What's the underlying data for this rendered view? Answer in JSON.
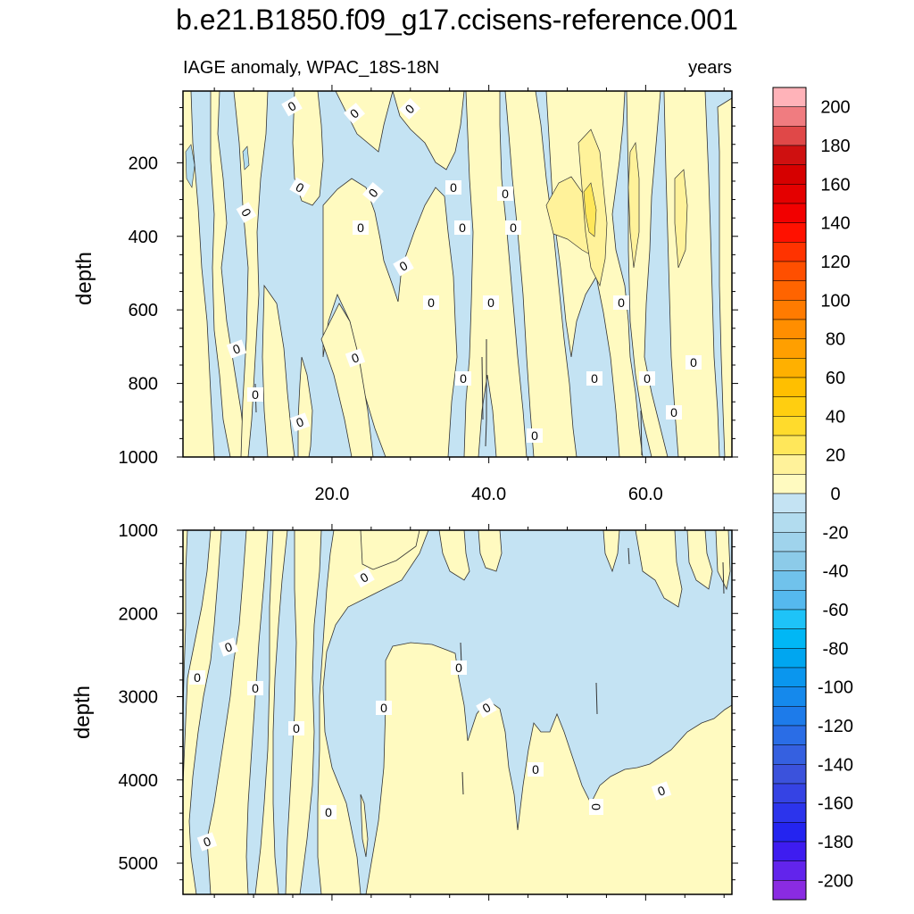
{
  "title": "b.e21.B1850.f09_g17.ccisens-reference.001",
  "chart_data": [
    {
      "type": "contour",
      "panel": "upper",
      "left_string": "IAGE anomaly, WPAC_18S-18N",
      "right_string": "years",
      "ylabel": "depth",
      "ylim": [
        1000,
        5
      ],
      "y_reversed": true,
      "xlim": [
        1,
        71
      ],
      "x_ticks": [
        20.0,
        40.0,
        60.0
      ],
      "x_tick_labels": [
        "20.0",
        "40.0",
        "60.0"
      ],
      "y_ticks": [
        200,
        400,
        600,
        800,
        1000
      ],
      "y_tick_labels": [
        "200",
        "400",
        "600",
        "800",
        "1000"
      ],
      "contour_line_labels": [
        "0",
        "0",
        "0",
        "0",
        "0",
        "0",
        "0",
        "0",
        "0",
        "0",
        "0",
        "0",
        "0",
        "0",
        "0",
        "0",
        "0",
        "0",
        "0",
        "0",
        "0",
        "0",
        "0",
        "0"
      ]
    },
    {
      "type": "contour",
      "panel": "lower",
      "ylabel": "depth",
      "ylim": [
        5375,
        1000
      ],
      "y_reversed": true,
      "xlim": [
        1,
        71
      ],
      "y_ticks": [
        1000,
        2000,
        3000,
        4000,
        5000
      ],
      "y_tick_labels": [
        "1000",
        "2000",
        "3000",
        "4000",
        "5000"
      ],
      "contour_line_labels": [
        "0",
        "0",
        "0",
        "0",
        "0",
        "0",
        "0",
        "0",
        "0",
        "0",
        "0",
        "0",
        "0"
      ]
    }
  ],
  "colorbar": {
    "levels": [
      "200",
      "180",
      "160",
      "140",
      "120",
      "100",
      "80",
      "60",
      "40",
      "20",
      "0",
      "-20",
      "-40",
      "-60",
      "-80",
      "-100",
      "-120",
      "-140",
      "-160",
      "-180",
      "-200"
    ],
    "colors_top_to_bottom": [
      "#ffb3b9",
      "#f07c80",
      "#e04848",
      "#cf1010",
      "#d60000",
      "#e40000",
      "#f20000",
      "#ff1100",
      "#ff3300",
      "#ff4f00",
      "#ff6400",
      "#ff7b00",
      "#ff8e00",
      "#ff9f00",
      "#ffb000",
      "#ffbf00",
      "#ffce10",
      "#ffdb2c",
      "#ffe75a",
      "#fff29a",
      "#fffac0",
      "#c4e3f3",
      "#b2dcef",
      "#9fd3ec",
      "#8ccbe9",
      "#70c2ec",
      "#55b9ee",
      "#1ec3f8",
      "#00b7f5",
      "#00a6f0",
      "#0a96ee",
      "#1589ec",
      "#1d7bea",
      "#2a6de6",
      "#3560e0",
      "#3b52dc",
      "#3543e4",
      "#2c34ec",
      "#2424f0",
      "#3e1cf0",
      "#6224ec",
      "#8a2be2"
    ]
  },
  "colors": {
    "positive_fill": "#fffac0",
    "negative_fill": "#c4e3f3",
    "slight_positive_fill": "#fff29a",
    "more_positive_fill": "#ffe75a",
    "slight_negative_fill": "#b2dcef"
  }
}
